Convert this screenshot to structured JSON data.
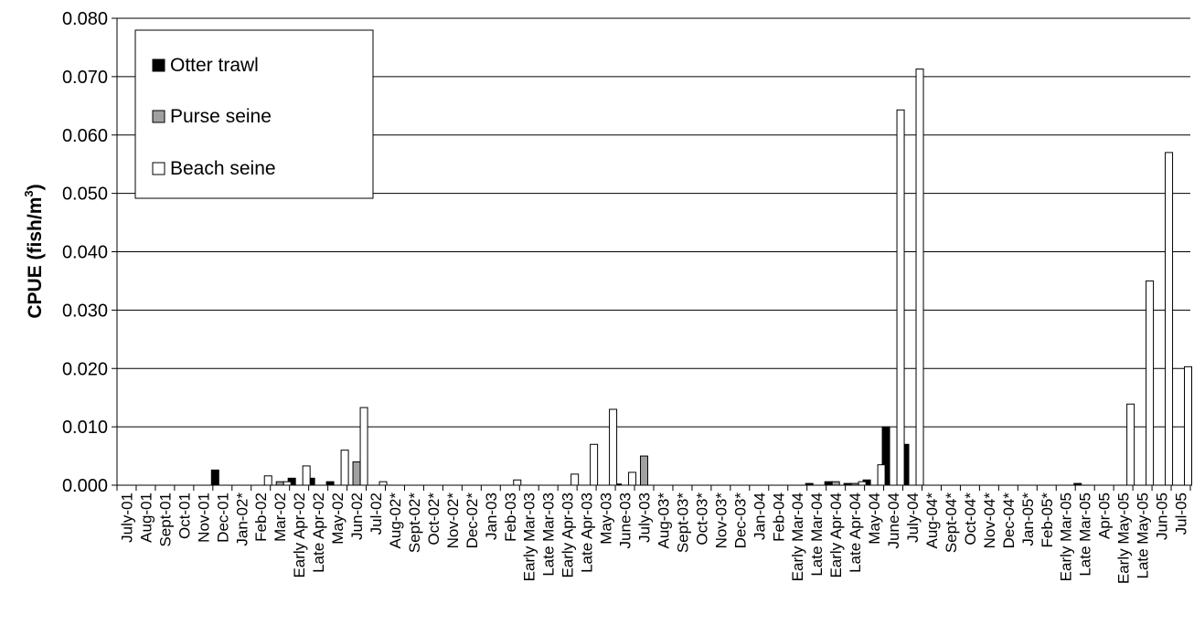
{
  "chart_data": {
    "type": "bar",
    "title": "",
    "xlabel": "",
    "ylabel": "CPUE (fish/m",
    "ylabel_sup": "3",
    "ylabel_end": ")",
    "ylim": [
      0,
      0.08
    ],
    "yticks": [
      "0.000",
      "0.010",
      "0.020",
      "0.030",
      "0.040",
      "0.050",
      "0.060",
      "0.070",
      "0.080"
    ],
    "grid": true,
    "legend_position": "top-left",
    "categories": [
      "July-01",
      "Aug-01",
      "Sept-01",
      "Oct-01",
      "Nov-01",
      "Dec-01",
      "Jan-02*",
      "Feb-02",
      "Mar-02",
      "Early Apr-02",
      "Late Apr-02",
      "May-02",
      "Jun-02",
      "Jul-02",
      "Aug-02*",
      "Sept-02*",
      "Oct-02*",
      "Nov-02*",
      "Dec-02*",
      "Jan-03",
      "Feb-03",
      "Early Mar-03",
      "Late Mar-03",
      "Early Apr-03",
      "Late Apr-03",
      "May-03",
      "June-03",
      "July-03",
      "Aug-03*",
      "Sept-03*",
      "Oct-03*",
      "Nov-03*",
      "Dec-03*",
      "Jan-04",
      "Feb-04",
      "Early Mar-04",
      "Late Mar-04",
      "Early Apr-04",
      "Late Apr-04",
      "May-04",
      "June-04",
      "July-04",
      "Aug-04*",
      "Sept-04*",
      "Oct-04*",
      "Nov-04*",
      "Dec-04*",
      "Jan-05*",
      "Feb-05*",
      "Early Mar-05",
      "Late Mar-05",
      "Apr-05",
      "Early May-05",
      "Late May-05",
      "Jun-05",
      "Jul-05"
    ],
    "series": [
      {
        "name": "Otter trawl",
        "color": "#000000",
        "values": [
          0,
          0,
          0,
          0,
          0,
          0.0026,
          0,
          0,
          0,
          0.0012,
          0.0012,
          0.0006,
          0,
          0,
          0,
          0,
          0,
          0,
          0,
          0,
          0,
          0,
          0,
          0,
          0,
          0,
          0.0002,
          0,
          0,
          0,
          0,
          0,
          0,
          0,
          0,
          0,
          0.0003,
          0.0006,
          0.0003,
          0.0009,
          0.01,
          0.007,
          0,
          0,
          0,
          0,
          0,
          0,
          0,
          0,
          0.0003,
          0,
          0,
          0,
          0,
          0
        ]
      },
      {
        "name": "Purse seine",
        "color": "#a0a0a0",
        "values": [
          0,
          0,
          0,
          0,
          0,
          0,
          0,
          0,
          0.0006,
          0,
          0,
          0,
          0.004,
          0,
          0,
          0,
          0,
          0,
          0,
          0,
          0,
          0,
          0,
          0,
          0,
          0,
          0,
          0.005,
          0,
          0,
          0,
          0,
          0,
          0,
          0,
          0,
          0,
          0.0006,
          0.0003,
          0,
          0,
          0,
          0,
          0,
          0,
          0,
          0,
          0,
          0,
          0,
          0,
          0,
          0,
          0,
          0,
          0
        ]
      },
      {
        "name": "Beach seine",
        "color": "#ffffff",
        "values": [
          0,
          0,
          0,
          0,
          0,
          0,
          0,
          0.0016,
          0.0006,
          0.0033,
          0,
          0.006,
          0.0133,
          0.0006,
          0,
          0,
          0,
          0,
          0,
          0,
          0.0009,
          0,
          0,
          0.0019,
          0.007,
          0.013,
          0.0022,
          0,
          0,
          0,
          0,
          0,
          0,
          0,
          0,
          0,
          0,
          0,
          0.0006,
          0.0035,
          0.0643,
          0.0713,
          0,
          0,
          0,
          0,
          0,
          0,
          0,
          0,
          0,
          0,
          0.0139,
          0.035,
          0.057,
          0.0203
        ]
      }
    ]
  }
}
